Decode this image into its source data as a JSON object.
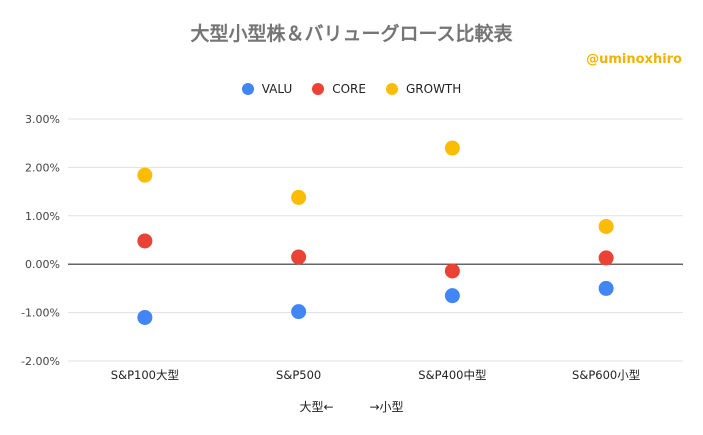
{
  "chart_data": {
    "type": "scatter",
    "title": "大型小型株＆バリューグロース比較表",
    "watermark": "@uminoxhiro",
    "xlabel": "大型←　　　→小型",
    "ylabel": "",
    "categories": [
      "S&P100大型",
      "S&P500",
      "S&P400中型",
      "S&P600小型"
    ],
    "ylim": [
      -2,
      3
    ],
    "yticks": [
      "3.00%",
      "2.00%",
      "1.00%",
      "0.00%",
      "-1.00%",
      "-2.00%"
    ],
    "ytick_values": [
      3,
      2,
      1,
      0,
      -1,
      -2
    ],
    "grid": true,
    "legend_position": "top",
    "series": [
      {
        "name": "VALU",
        "color": "#4285f4",
        "values": [
          -1.1,
          -0.98,
          -0.65,
          -0.5
        ]
      },
      {
        "name": "CORE",
        "color": "#ea4335",
        "values": [
          0.48,
          0.15,
          -0.14,
          0.13
        ]
      },
      {
        "name": "GROWTH",
        "color": "#fbbc04",
        "values": [
          1.84,
          1.38,
          2.4,
          0.78
        ]
      }
    ]
  }
}
